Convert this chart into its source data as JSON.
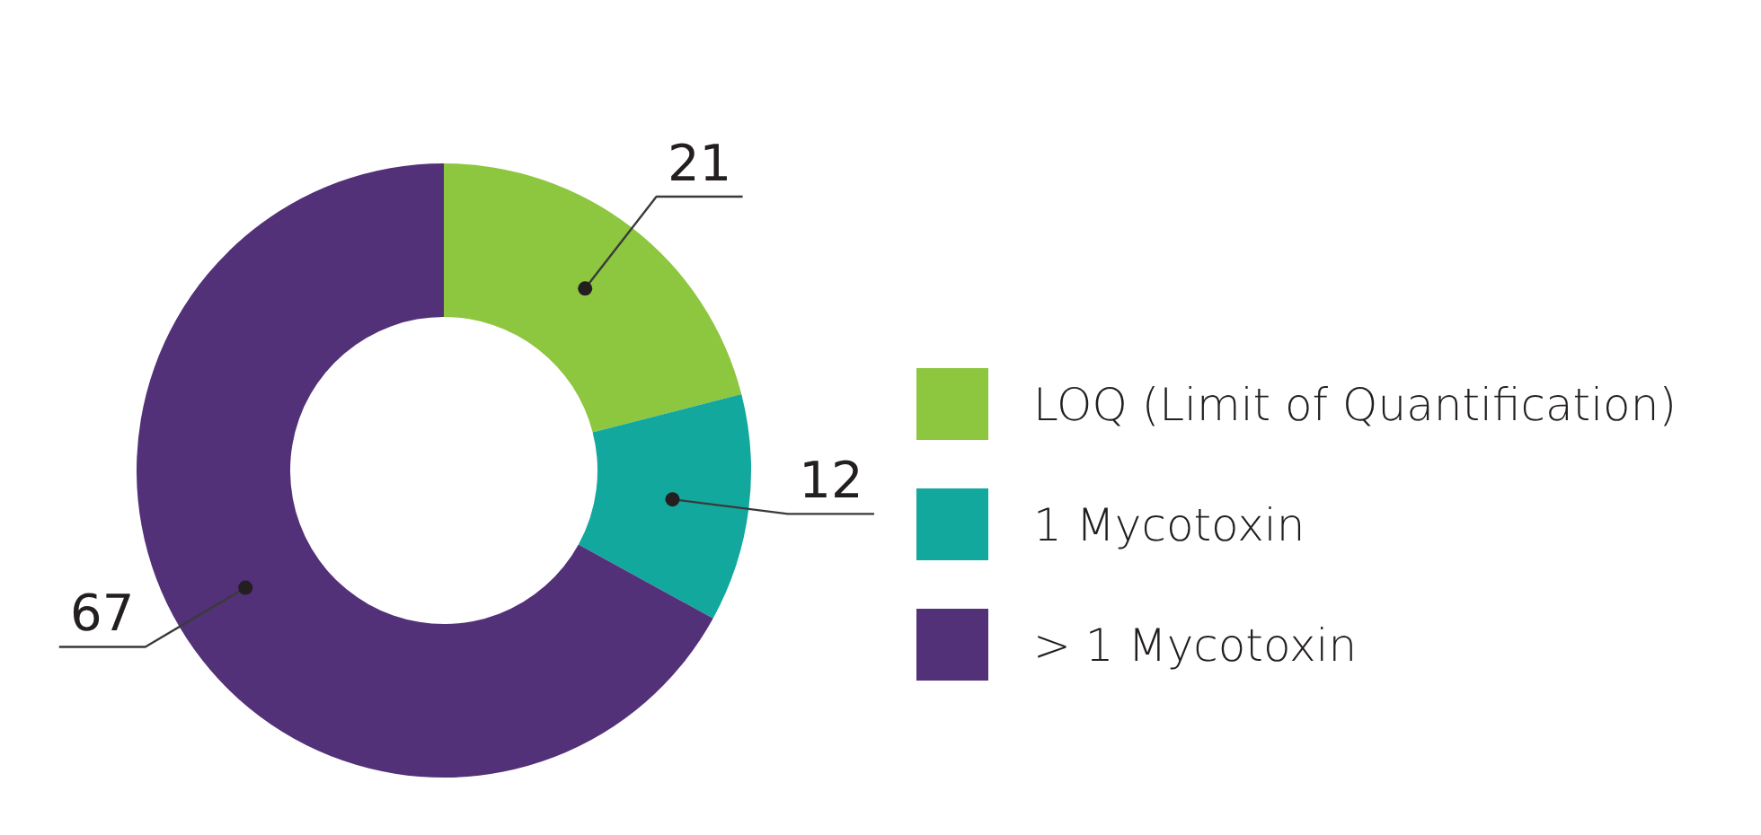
{
  "chart_data": {
    "type": "donut",
    "categories": [
      "LOQ (Limit of Quantification)",
      "1 Mycotoxin",
      "> 1 Mycotoxin"
    ],
    "values": [
      21,
      12,
      67
    ],
    "colors": [
      "#8dc63f",
      "#12a89d",
      "#523178"
    ],
    "data_labels": true,
    "legend": "right"
  }
}
